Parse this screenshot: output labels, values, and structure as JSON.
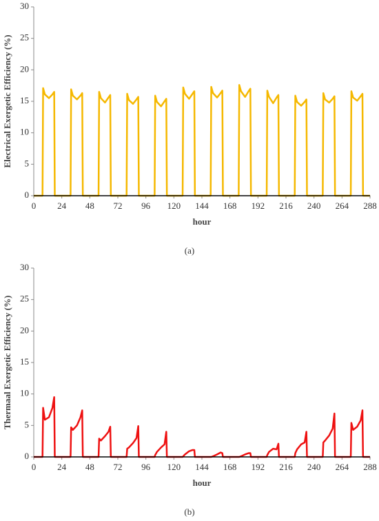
{
  "chart_data": [
    {
      "type": "line",
      "label": "(a)",
      "x_label": "hour",
      "y_label": "Electrical  Exergetic Efficiency (%)",
      "xlim": [
        0,
        288
      ],
      "ylim": [
        0,
        30
      ],
      "xticks": [
        0,
        24,
        48,
        72,
        96,
        120,
        144,
        168,
        192,
        216,
        240,
        264,
        288
      ],
      "yticks": [
        0,
        5,
        10,
        15,
        20,
        25,
        30
      ],
      "x": [
        0,
        7.5,
        8,
        9.5,
        13,
        16,
        17.5,
        18,
        31.5,
        32,
        33.5,
        37,
        40,
        41.5,
        42,
        55.5,
        56,
        57.5,
        61,
        64,
        65.5,
        66,
        79.5,
        80,
        81.5,
        85,
        88,
        89.5,
        90,
        103.5,
        104,
        105.5,
        109,
        112,
        113.5,
        114,
        127.5,
        128,
        129.5,
        133,
        136,
        137.5,
        138,
        151.5,
        152,
        153.5,
        157,
        160,
        161.5,
        162,
        175.5,
        176,
        177.5,
        181,
        184,
        185.5,
        186,
        199.5,
        200,
        201.5,
        205,
        208,
        209.5,
        210,
        223.5,
        224,
        225.5,
        229,
        232,
        233.5,
        234,
        247.5,
        248,
        249.5,
        253,
        256,
        257.5,
        258,
        271.5,
        272,
        273.5,
        277,
        280,
        281.5,
        282,
        288
      ],
      "series": [
        {
          "color": "#f5b800",
          "values": [
            0,
            0,
            17.1,
            16.1,
            15.5,
            16.1,
            16.5,
            0,
            0,
            16.9,
            15.9,
            15.3,
            15.9,
            16.3,
            0,
            0,
            16.5,
            15.5,
            14.8,
            15.6,
            16.0,
            0,
            0,
            16.2,
            15.2,
            14.6,
            15.3,
            15.7,
            0,
            0,
            15.9,
            14.9,
            14.2,
            15.0,
            15.4,
            0,
            0,
            17.2,
            16.2,
            15.4,
            16.2,
            16.6,
            0,
            0,
            17.3,
            16.3,
            15.6,
            16.3,
            16.7,
            0,
            0,
            17.6,
            16.6,
            15.7,
            16.6,
            17.0,
            0,
            0,
            16.7,
            15.7,
            14.7,
            15.6,
            16.0,
            0,
            0,
            15.9,
            14.9,
            14.3,
            14.9,
            15.3,
            0,
            0,
            16.3,
            15.3,
            14.8,
            15.4,
            15.8,
            0,
            0,
            16.6,
            15.6,
            15.1,
            15.8,
            16.2,
            0,
            0
          ]
        }
      ]
    },
    {
      "type": "line",
      "label": "(b)",
      "x_label": "hour",
      "y_label": "Thermaal  Exergetic Efficiency (%)",
      "xlim": [
        0,
        288
      ],
      "ylim": [
        0,
        30
      ],
      "xticks": [
        0,
        24,
        48,
        72,
        96,
        120,
        144,
        168,
        192,
        216,
        240,
        264,
        288
      ],
      "yticks": [
        0,
        5,
        10,
        15,
        20,
        25,
        30
      ],
      "x": [
        0,
        7.5,
        8,
        9.5,
        13,
        16,
        17.5,
        18,
        31.5,
        32,
        33.5,
        37,
        40,
        41.5,
        42,
        55.5,
        56,
        57.5,
        61,
        64,
        65.5,
        66,
        79.5,
        80,
        81.5,
        85,
        88,
        89.5,
        90,
        103.5,
        104,
        105.5,
        109,
        112,
        113.5,
        114,
        127.5,
        128,
        129.5,
        133,
        136,
        137.5,
        138,
        151.5,
        152,
        153.5,
        157,
        160,
        161.5,
        162,
        175.5,
        176,
        177.5,
        181,
        184,
        185.5,
        186,
        199.5,
        200,
        201.5,
        205,
        208,
        209.5,
        210,
        223.5,
        224,
        225.5,
        229,
        232,
        233.5,
        234,
        247.5,
        248,
        249.5,
        253,
        256,
        257.5,
        258,
        271.5,
        272,
        273.5,
        277,
        280,
        281.5,
        282,
        288
      ],
      "series": [
        {
          "color": "#ee1111",
          "values": [
            0,
            0,
            7.8,
            5.9,
            6.3,
            7.8,
            9.5,
            0,
            0,
            4.7,
            4.3,
            5.0,
            6.3,
            7.4,
            0,
            0,
            2.9,
            2.6,
            3.3,
            4.0,
            4.8,
            0,
            0,
            1.3,
            1.5,
            2.2,
            3.0,
            4.9,
            0,
            0,
            0.3,
            0.8,
            1.5,
            2.0,
            4.0,
            0,
            0,
            0.1,
            0.4,
            0.9,
            1.1,
            1.1,
            0,
            0,
            0,
            0.1,
            0.4,
            0.7,
            0.6,
            0,
            0,
            0,
            0.1,
            0.4,
            0.6,
            0.6,
            0,
            0,
            0.3,
            0.8,
            1.3,
            1.2,
            2.1,
            0,
            0,
            0.6,
            1.2,
            2.0,
            2.3,
            4.0,
            0,
            0,
            2.3,
            2.6,
            3.4,
            4.5,
            6.9,
            0,
            0,
            5.4,
            4.3,
            4.8,
            5.8,
            7.4,
            0,
            0
          ]
        }
      ]
    }
  ]
}
